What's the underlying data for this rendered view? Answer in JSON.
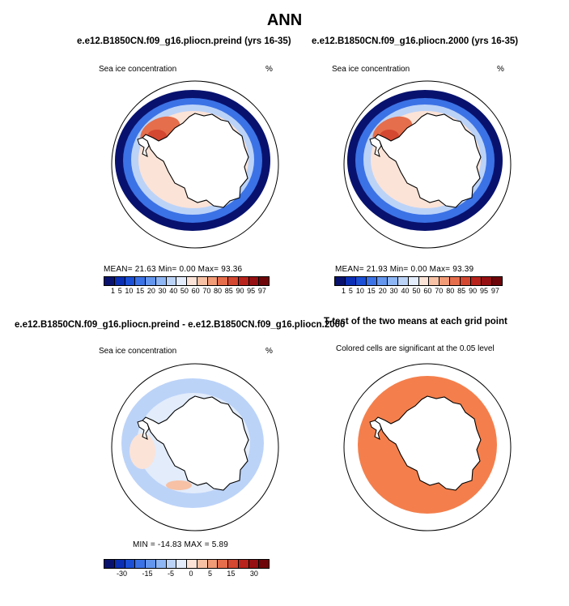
{
  "figure": {
    "title": "ANN"
  },
  "panels": {
    "p1": {
      "title": "e.e12.B1850CN.f09_g16.pliocn.preind (yrs 16-35)",
      "subtitle_left": "Sea ice concentration",
      "subtitle_right": "%",
      "stats": "MEAN=  21.63  Min=   0.00  Max=  93.36"
    },
    "p2": {
      "title": "e.e12.B1850CN.f09_g16.pliocn.2000 (yrs 16-35)",
      "subtitle_left": "Sea ice concentration",
      "subtitle_right": "%",
      "stats": "MEAN=  21.93  Min=   0.00  Max=  93.39"
    },
    "p3": {
      "title": "e.e12.B1850CN.f09_g16.pliocn.preind - e.e12.B1850CN.f09_g16.pliocn.2000",
      "subtitle_left": "Sea ice concentration",
      "subtitle_right": "%",
      "stats": "MIN = -14.83  MAX =   5.89"
    },
    "p4": {
      "title": "T-test of the two means at each grid point",
      "subtitle": "Colored cells are significant at the 0.05 level"
    }
  },
  "colorbars": {
    "conc": {
      "labels": [
        "1",
        "5",
        "10",
        "15",
        "20",
        "30",
        "40",
        "50",
        "60",
        "70",
        "80",
        "85",
        "90",
        "95",
        "97"
      ],
      "colors": [
        "#08126e",
        "#0a2fb4",
        "#1a4fd6",
        "#3b72e6",
        "#6496ee",
        "#8fb6f4",
        "#bcd3f8",
        "#e2ecfb",
        "#fbe3d7",
        "#f7c1a5",
        "#f19b77",
        "#e56e4c",
        "#d44731",
        "#b8231b",
        "#951012",
        "#6e0509"
      ]
    },
    "diff": {
      "labels": [
        "-30",
        "-15",
        "-5",
        "0",
        "5",
        "15",
        "30"
      ],
      "colors": [
        "#08126e",
        "#0a2fb4",
        "#1a4fd6",
        "#3b72e6",
        "#6496ee",
        "#8fb6f4",
        "#bcd3f8",
        "#e2ecfb",
        "#fbe3d7",
        "#f7c1a5",
        "#f19b77",
        "#e56e4c",
        "#d44731",
        "#b8231b",
        "#951012",
        "#6e0509"
      ]
    }
  },
  "map_colors": {
    "open_ocean": "#ffffff",
    "land": "#ffffff",
    "coast": "#000000",
    "ice_edge": "#08126e",
    "ice_mid": "#3b72e6",
    "ice_light": "#bcd3f8",
    "weddell_high": "#e56e4c",
    "diff_neg": "#bcd3f8",
    "diff_pos": "#fbe3d7",
    "significant": "#f47f4c"
  }
}
